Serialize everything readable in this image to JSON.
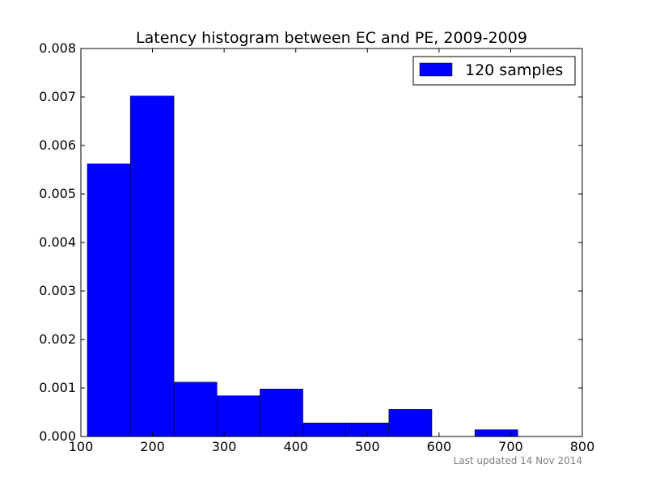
{
  "chart_data": {
    "type": "bar",
    "title": "Latency histogram between EC and PE, 2009-2009",
    "xlabel": "",
    "ylabel": "",
    "xlim": [
      100,
      800
    ],
    "ylim": [
      0,
      0.008
    ],
    "x_ticks": [
      "100",
      "200",
      "300",
      "400",
      "500",
      "600",
      "700",
      "800"
    ],
    "y_ticks": [
      "0.000",
      "0.001",
      "0.002",
      "0.003",
      "0.004",
      "0.005",
      "0.006",
      "0.007",
      "0.008"
    ],
    "bar_color": "#0000ff",
    "bins": [
      {
        "start": 109,
        "end": 169,
        "value": 0.00562
      },
      {
        "start": 169,
        "end": 230,
        "value": 0.00702
      },
      {
        "start": 230,
        "end": 290,
        "value": 0.00112
      },
      {
        "start": 290,
        "end": 350,
        "value": 0.00084
      },
      {
        "start": 350,
        "end": 410,
        "value": 0.00098
      },
      {
        "start": 410,
        "end": 470,
        "value": 0.00028
      },
      {
        "start": 470,
        "end": 530,
        "value": 0.00028
      },
      {
        "start": 530,
        "end": 590,
        "value": 0.00056
      },
      {
        "start": 590,
        "end": 650,
        "value": 0.0
      },
      {
        "start": 650,
        "end": 710,
        "value": 0.00014
      }
    ],
    "legend": {
      "label": "120 samples",
      "placement": "top-right"
    },
    "grid": false
  },
  "footer": {
    "text": "Last updated 14 Nov 2014"
  }
}
